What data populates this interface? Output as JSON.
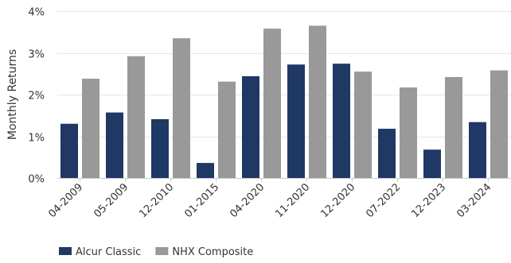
{
  "chart_data": {
    "type": "bar",
    "categories": [
      "04-2009",
      "05-2009",
      "12-2010",
      "01-2015",
      "04-2020",
      "11-2020",
      "12-2020",
      "07-2022",
      "12-2023",
      "03-2024"
    ],
    "series": [
      {
        "name": "Alcur Classic",
        "color": "#1f3864",
        "values": [
          1.3,
          1.57,
          1.41,
          0.36,
          2.44,
          2.72,
          2.74,
          1.18,
          0.68,
          1.34
        ]
      },
      {
        "name": "NHX Composite",
        "color": "#999999",
        "values": [
          2.38,
          2.92,
          3.35,
          2.31,
          3.58,
          3.65,
          2.55,
          2.17,
          2.42,
          2.58
        ]
      }
    ],
    "ylabel": "Monthly Returns",
    "yticks": [
      "0%",
      "1%",
      "2%",
      "3%",
      "4%"
    ],
    "ylim": [
      0,
      4
    ],
    "grid": true,
    "legend_position": "bottom-left"
  }
}
